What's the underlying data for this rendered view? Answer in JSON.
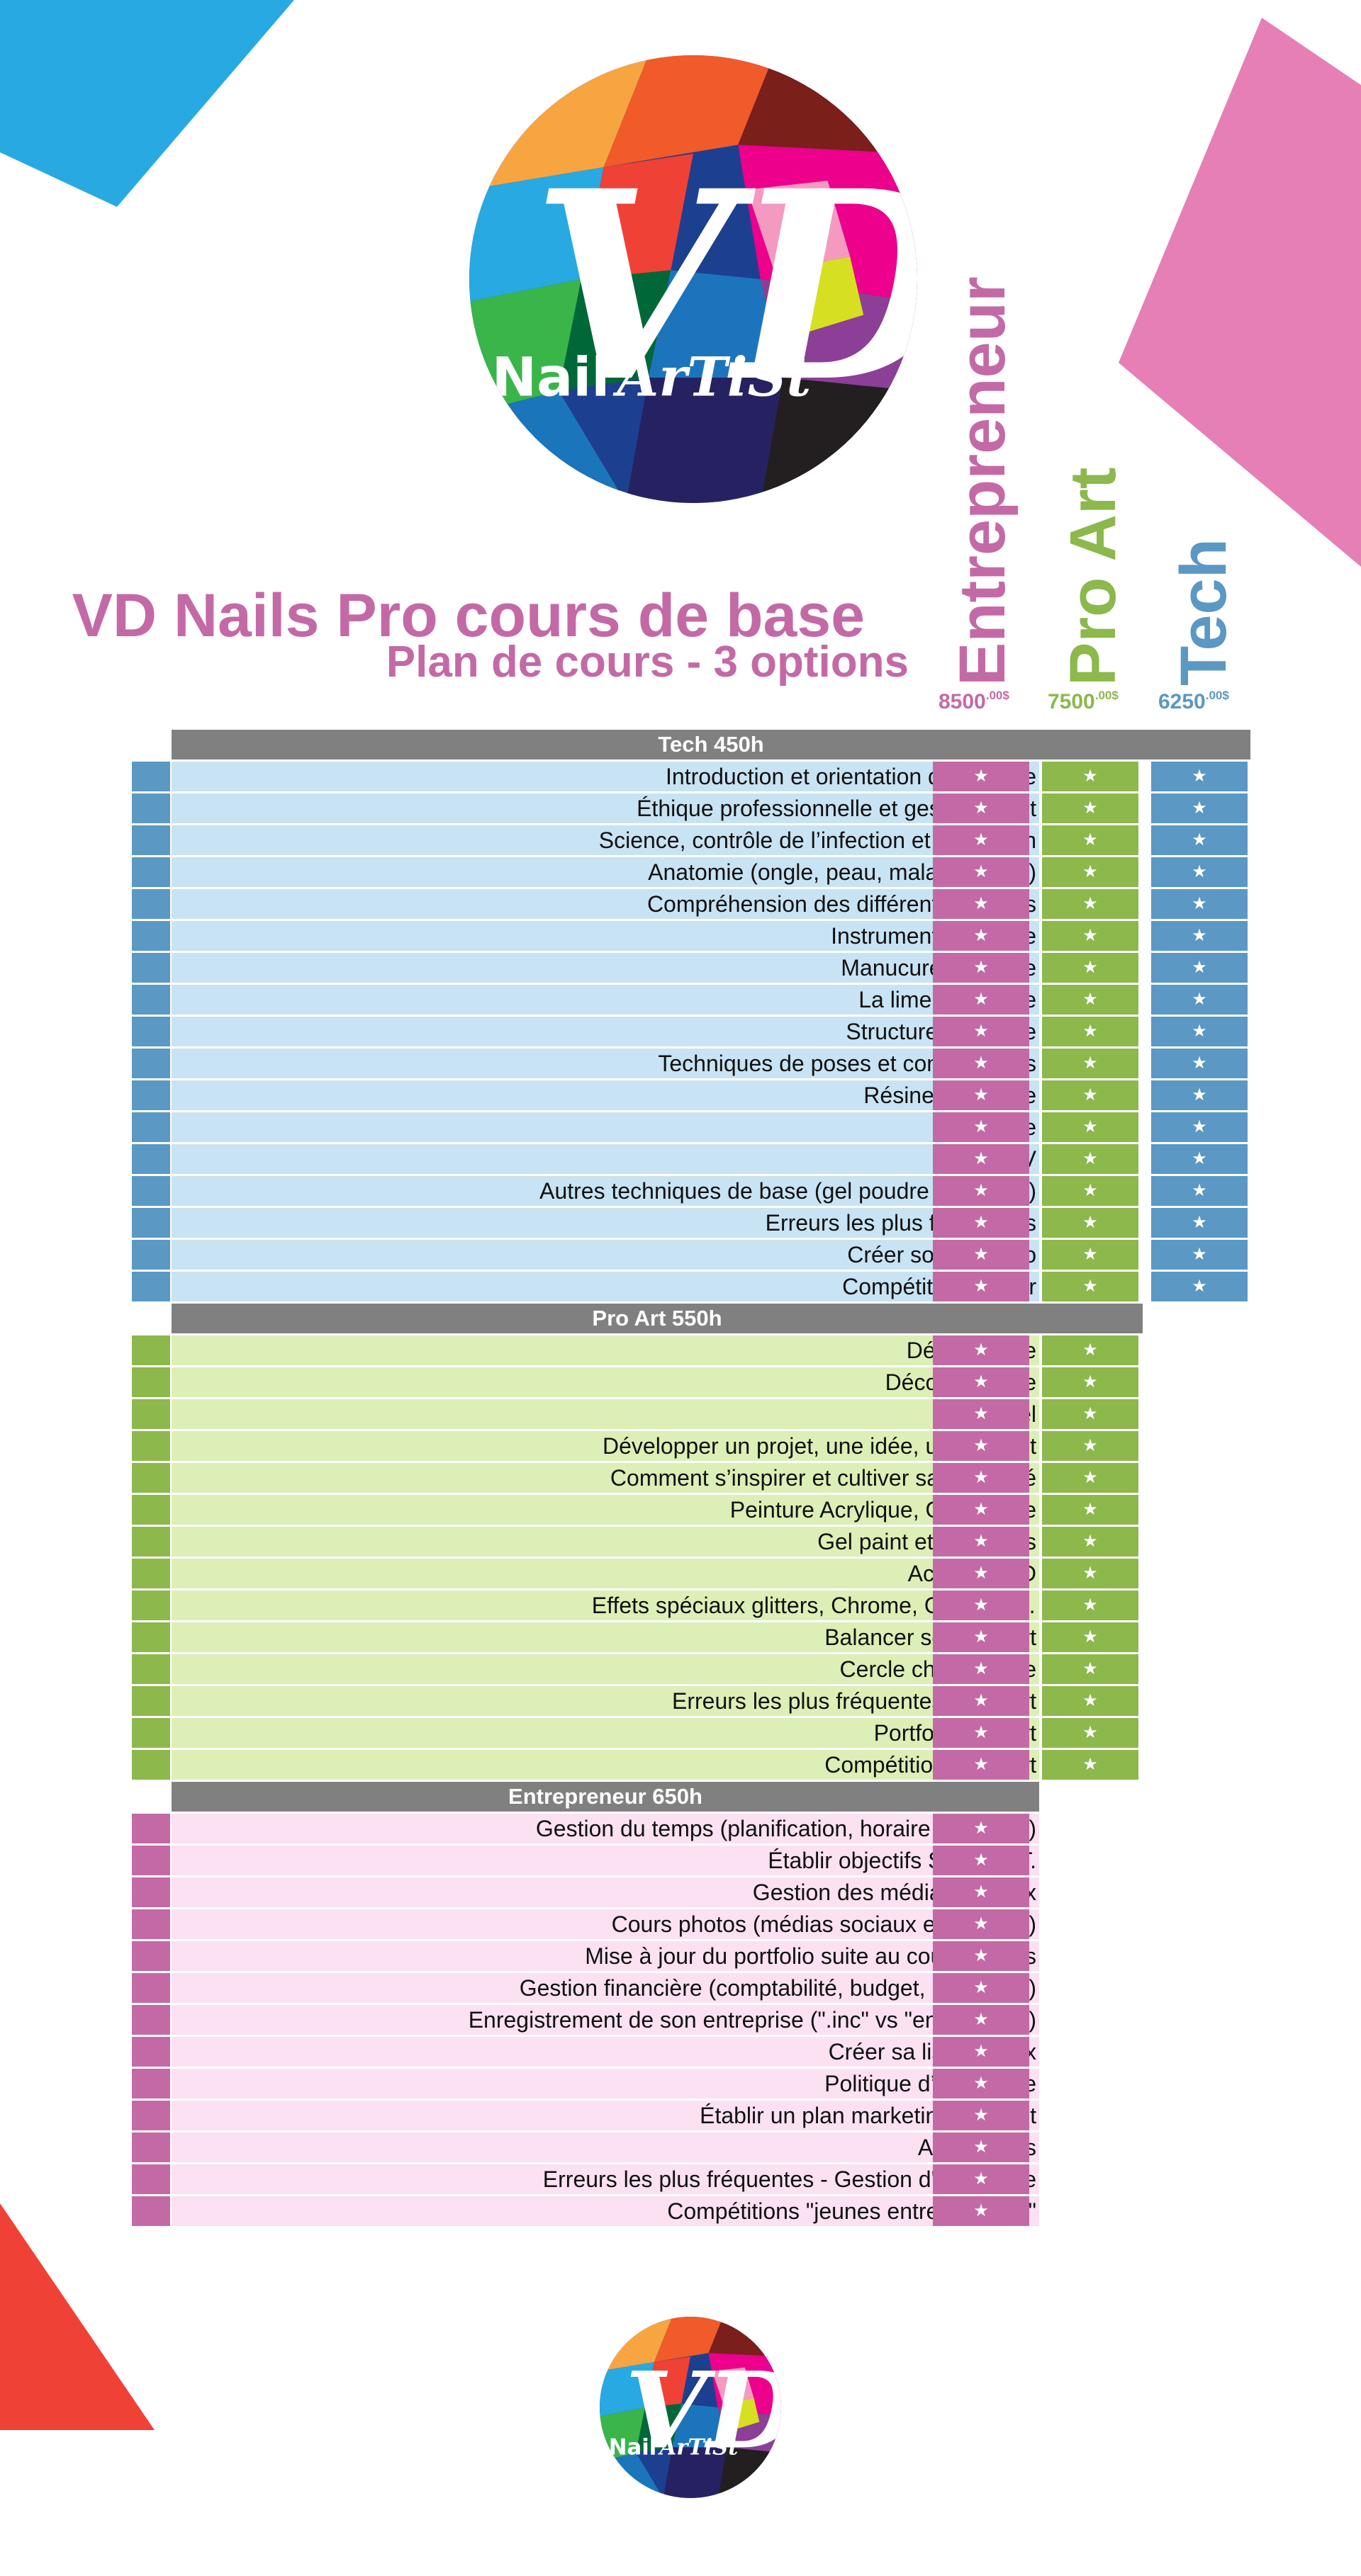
{
  "header": {
    "title": "VD Nails Pro cours de base",
    "subtitle": "Plan de cours - 3 options"
  },
  "logo": {
    "text_nail": "Nail",
    "text_artist": "ArTiSt",
    "text_initials": "VD"
  },
  "options": [
    {
      "name": "Entrepreneur",
      "price": "8500",
      "cents": ".00$",
      "color": "#c36aa6"
    },
    {
      "name": "Pro Art",
      "price": "7500",
      "cents": ".00$",
      "color": "#8cb84c"
    },
    {
      "name": "Tech",
      "price": "6250",
      "cents": ".00$",
      "color": "#5b98c4"
    }
  ],
  "colors": {
    "tech_light": "#c8e3f3",
    "tech_dark": "#5b98c4",
    "proart_light": "#dcefb6",
    "proart_dark": "#8cb84c",
    "entre_light": "#fbe1f2",
    "entre_dark": "#c36aa6",
    "header_gray": "#808080"
  },
  "star": "★",
  "sections": {
    "tech": {
      "header": "Tech 450h",
      "items": [
        "Introduction et orientation de carrière",
        "Éthique professionnelle et gestion client",
        "Science, contrôle de l’infection et protection",
        "Anatomie (ongle, peau, maladies, etc.)",
        "Compréhension des différents produits",
        "Instruments de base",
        "Manucure régulière",
        "La lime électrique",
        "Structures de base",
        "Techniques de poses et constructions",
        "Résine et poudre",
        "Acrylique",
        "Gel UV",
        "Autres techniques de base (gel poudre & polygel)",
        "Erreurs les plus fréquentes",
        "Créer son Portfolio",
        "Compétitions junior"
      ]
    },
    "proart": {
      "header": "Pro Art 550h",
      "items": [
        "Déco Résine",
        "Déco Acrylique",
        "Déco Gel",
        "Développer un projet, une idée, un concept",
        "Comment s’inspirer et cultiver sa créativité",
        "Peinture Acrylique, One stroke",
        "Gel paint et ses effets",
        "Acrylique 3D",
        "Effets spéciaux glitters, Chrome, Cat eyes…",
        "Balancer son Nail Art",
        "Cercle chromatique",
        "Erreurs les plus fréquentes - Nail Art",
        "Portfolio Nail Art",
        "Compétitions Nail Art"
      ]
    },
    "entre": {
      "header": "Entrepreneur 650h",
      "items": [
        "Gestion du temps (planification, horaire type, etc.)",
        "Établir objectifs S.M.A.R.T.",
        "Gestion des médias sociaux",
        "Cours photos (médias sociaux et portfolio)",
        "Mise à jour du portfolio suite au cours photos",
        "Gestion financière (comptabilité, budget, loyer, etc.)",
        "Enregistrement de son entreprise (\".inc\" vs \"enregistrer\")",
        "Créer sa liste de prix",
        "Politique d’entreprise",
        "Établir un plan marketing complet",
        "Assurances",
        "Erreurs les plus fréquentes - Gestion d'entreprise",
        "Compétitions \"jeunes entrepreneurs\""
      ]
    }
  }
}
